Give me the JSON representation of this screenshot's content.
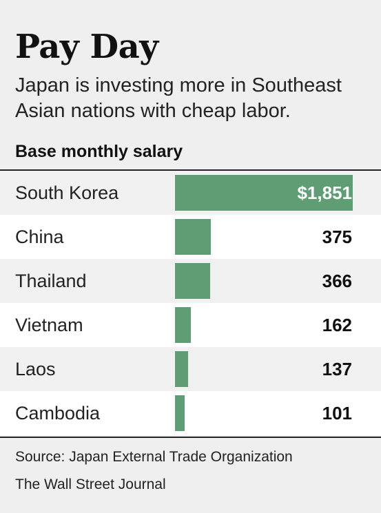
{
  "header": {
    "title": "Pay Day",
    "subtitle": "Japan is investing more in Southeast Asian nations with cheap labor.",
    "measure": "Base monthly salary"
  },
  "chart_data": {
    "type": "bar",
    "orientation": "horizontal",
    "title": "Pay Day",
    "subtitle": "Japan is investing more in Southeast Asian nations with cheap labor.",
    "ylabel": "Base monthly salary",
    "categories": [
      "South Korea",
      "China",
      "Thailand",
      "Vietnam",
      "Laos",
      "Cambodia"
    ],
    "values": [
      1851,
      375,
      366,
      162,
      137,
      101
    ],
    "value_labels": [
      "$1,851",
      "375",
      "366",
      "162",
      "137",
      "101"
    ],
    "xlim": [
      0,
      1851
    ],
    "bar_color": "#5f9e74",
    "grid": false,
    "legend": "none"
  },
  "footer": {
    "source": "Source: Japan External Trade Organization",
    "credit": "The Wall Street Journal"
  },
  "colors": {
    "bar": "#5f9e74",
    "background": "#efefef",
    "row_alt": "#ffffff",
    "text": "#111111"
  }
}
